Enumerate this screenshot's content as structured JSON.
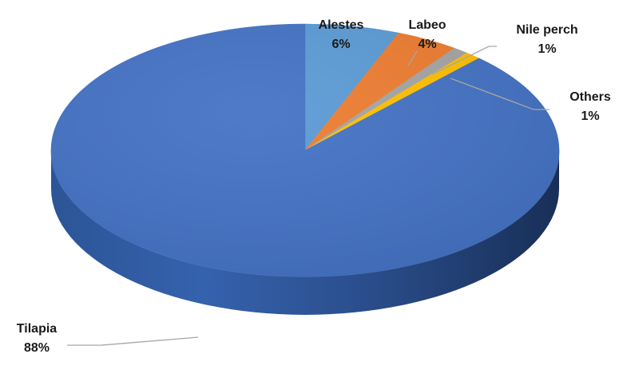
{
  "chart_data": {
    "type": "pie",
    "variant": "3d",
    "start_angle": "12 o'clock",
    "direction": "clockwise",
    "series": [
      {
        "values": [
          6,
          4,
          1,
          1,
          88
        ],
        "labels": [
          "Alestes",
          "Labeo",
          "Nile perch",
          "Others",
          "Tilapia"
        ]
      }
    ],
    "slices": [
      {
        "label": "Alestes",
        "value": 6,
        "display": "6%",
        "color": "#5b9bd5"
      },
      {
        "label": "Labeo",
        "value": 4,
        "display": "4%",
        "color": "#ed7d31"
      },
      {
        "label": "Nile perch",
        "value": 1,
        "display": "1%",
        "color": "#a5a5a5"
      },
      {
        "label": "Others",
        "value": 1,
        "display": "1%",
        "color": "#ffc000"
      },
      {
        "label": "Tilapia",
        "value": 88,
        "display": "88%",
        "color": "#4472c4"
      }
    ],
    "title": "",
    "legend": "none",
    "data_labels": "outside with leader lines"
  }
}
